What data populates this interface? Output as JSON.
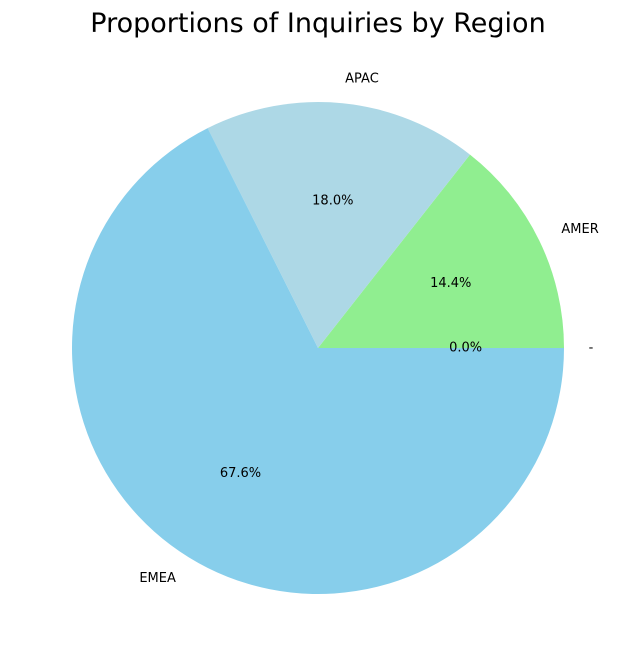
{
  "chart_data": {
    "type": "pie",
    "title": "Proportions of Inquiries by Region",
    "start_angle_deg": 0,
    "direction": "counterclockwise",
    "legend": "none",
    "slices": [
      {
        "label": "-",
        "value": 0.0,
        "pct_label": "0.0%",
        "color": "#ffb6c1"
      },
      {
        "label": "AMER",
        "value": 14.4,
        "pct_label": "14.4%",
        "color": "#90ee90"
      },
      {
        "label": "APAC",
        "value": 18.0,
        "pct_label": "18.0%",
        "color": "#add8e6"
      },
      {
        "label": "EMEA",
        "value": 67.6,
        "pct_label": "67.6%",
        "color": "#87ceeb"
      }
    ]
  }
}
